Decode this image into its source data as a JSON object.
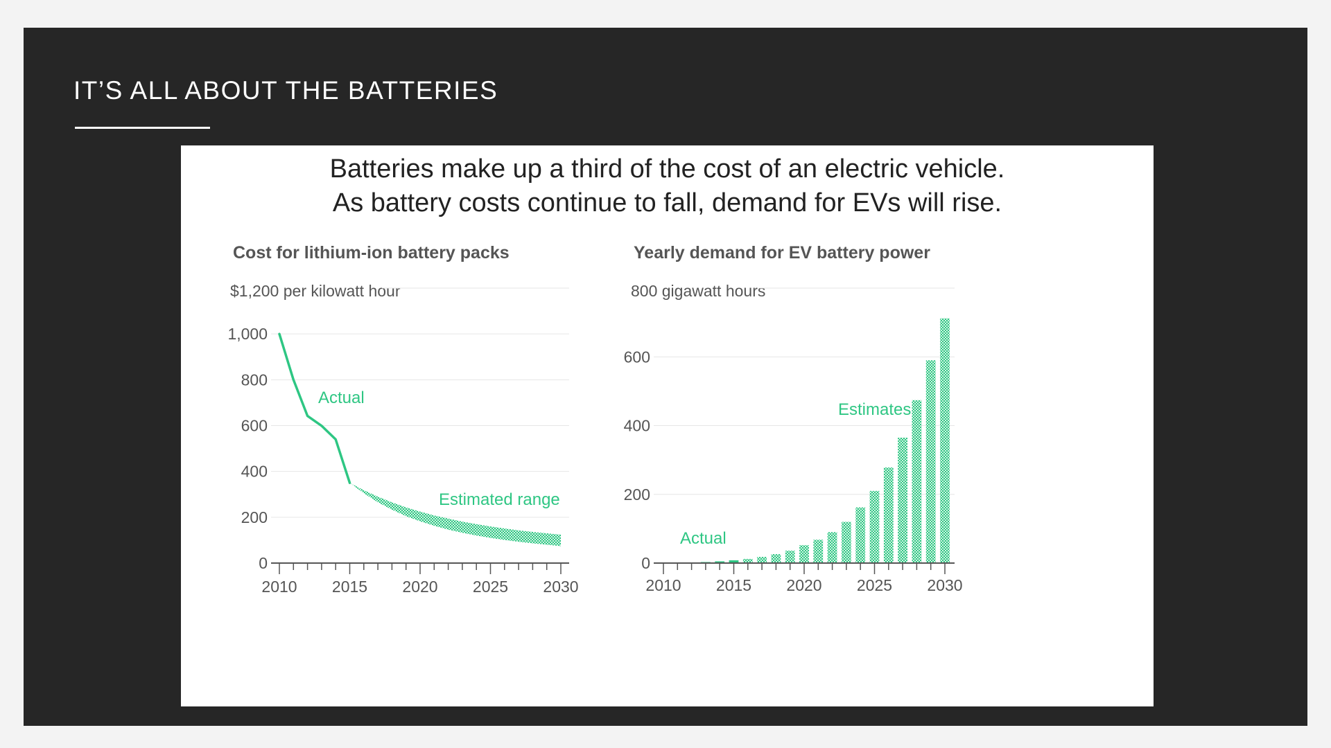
{
  "slide": {
    "title": "IT’S ALL ABOUT THE BATTERIES"
  },
  "figure": {
    "headline_line1": "Batteries make up a third of the cost of an electric vehicle.",
    "headline_line2": "As battery costs continue to fall, demand for EVs will rise."
  },
  "colors": {
    "accent": "#2ec683",
    "hatch_light": "#d2f3e3",
    "grid": "#e6e6e6",
    "axis": "#555555"
  },
  "chart_data": [
    {
      "type": "line",
      "title": "Cost for lithium-ion battery packs",
      "unit_label": "$1,200 per kilowatt hour",
      "xlim": [
        2010,
        2030
      ],
      "ylim": [
        0,
        1200
      ],
      "x_ticks": [
        2010,
        2015,
        2020,
        2025,
        2030
      ],
      "y_ticks": [
        0,
        200,
        400,
        600,
        800,
        1000
      ],
      "y_tick_labels": [
        "0",
        "200",
        "400",
        "600",
        "800",
        "1,000"
      ],
      "gridlines": true,
      "series": [
        {
          "name": "Actual",
          "x": [
            2010,
            2011,
            2012,
            2013,
            2014,
            2015
          ],
          "y": [
            1000,
            800,
            642,
            599,
            540,
            350
          ]
        }
      ],
      "range": {
        "name": "Estimated range",
        "x": [
          2015,
          2016,
          2017,
          2018,
          2019,
          2020,
          2021,
          2022,
          2023,
          2024,
          2025,
          2026,
          2027,
          2028,
          2029,
          2030
        ],
        "upper": [
          350,
          318,
          290,
          265,
          243,
          225,
          208,
          194,
          181,
          170,
          160,
          151,
          143,
          136,
          130,
          124
        ],
        "lower": [
          350,
          305,
          265,
          233,
          205,
          182,
          163,
          146,
          132,
          120,
          110,
          101,
          93,
          86,
          80,
          74
        ]
      },
      "annotations": [
        "Actual",
        "Estimated range"
      ]
    },
    {
      "type": "bar",
      "title": "Yearly demand for EV battery power",
      "unit_label": "800 gigawatt hours",
      "xlim": [
        2010,
        2030
      ],
      "ylim": [
        0,
        800
      ],
      "x_ticks": [
        2010,
        2015,
        2020,
        2025,
        2030
      ],
      "y_ticks": [
        0,
        200,
        400,
        600
      ],
      "y_tick_labels": [
        "0",
        "200",
        "400",
        "600"
      ],
      "gridlines": true,
      "x": [
        2010,
        2011,
        2012,
        2013,
        2014,
        2015,
        2016,
        2017,
        2018,
        2019,
        2020,
        2021,
        2022,
        2023,
        2024,
        2025,
        2026,
        2027,
        2028,
        2029,
        2030
      ],
      "values": [
        0.5,
        1,
        2,
        3,
        5,
        8,
        12,
        18,
        26,
        36,
        52,
        68,
        90,
        120,
        162,
        210,
        278,
        365,
        474,
        590,
        712
      ],
      "actual_until": 2015,
      "annotations": [
        "Actual",
        "Estimates"
      ]
    }
  ]
}
